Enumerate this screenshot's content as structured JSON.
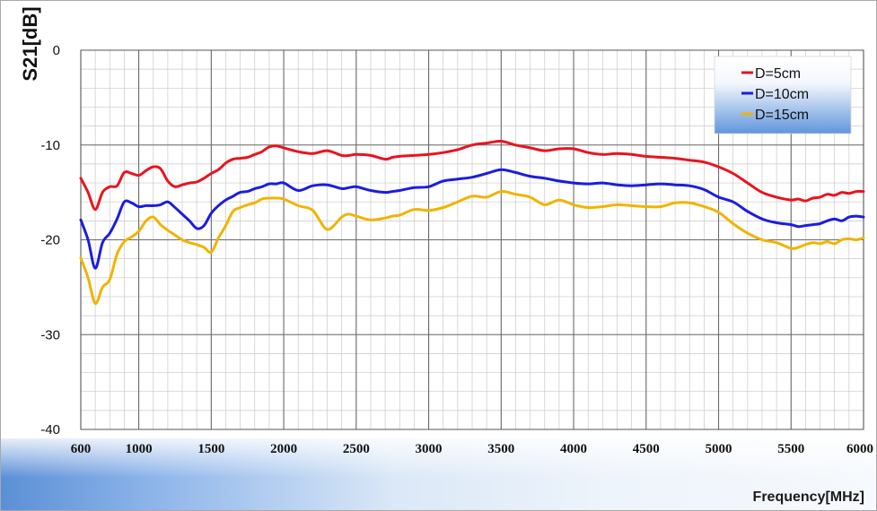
{
  "chart_data": {
    "type": "line",
    "title": "",
    "xlabel": "Frequency[MHz]",
    "ylabel": "S21[dB]",
    "xlim": [
      600,
      6000
    ],
    "ylim": [
      -40,
      0
    ],
    "xticks": [
      600,
      1000,
      1500,
      2000,
      2500,
      3000,
      3500,
      4000,
      4500,
      5000,
      5500,
      6000
    ],
    "yticks": [
      0,
      -10,
      -20,
      -30,
      -40
    ],
    "grid": true,
    "legend_position": "top-right",
    "series": [
      {
        "name": "D=5cm",
        "color": "#e8141e",
        "x": [
          600,
          650,
          700,
          750,
          800,
          850,
          900,
          950,
          1000,
          1050,
          1100,
          1150,
          1200,
          1250,
          1300,
          1350,
          1400,
          1450,
          1500,
          1550,
          1600,
          1650,
          1700,
          1750,
          1800,
          1850,
          1900,
          1950,
          2000,
          2100,
          2200,
          2300,
          2400,
          2450,
          2500,
          2600,
          2700,
          2750,
          2800,
          2900,
          3000,
          3100,
          3200,
          3300,
          3400,
          3500,
          3600,
          3700,
          3800,
          3900,
          4000,
          4100,
          4200,
          4300,
          4400,
          4500,
          4600,
          4700,
          4800,
          4900,
          5000,
          5100,
          5200,
          5300,
          5400,
          5500,
          5550,
          5600,
          5650,
          5700,
          5750,
          5800,
          5850,
          5900,
          5950,
          6000
        ],
        "y": [
          -13.5,
          -15.0,
          -16.8,
          -15.0,
          -14.4,
          -14.3,
          -12.9,
          -13.0,
          -13.2,
          -12.7,
          -12.3,
          -12.5,
          -13.8,
          -14.4,
          -14.2,
          -14.0,
          -13.9,
          -13.5,
          -13.0,
          -12.6,
          -11.9,
          -11.5,
          -11.4,
          -11.3,
          -11.0,
          -10.7,
          -10.2,
          -10.1,
          -10.3,
          -10.7,
          -10.9,
          -10.6,
          -11.1,
          -11.1,
          -11.0,
          -11.1,
          -11.5,
          -11.3,
          -11.2,
          -11.1,
          -11.0,
          -10.8,
          -10.5,
          -10.0,
          -9.8,
          -9.6,
          -10.0,
          -10.3,
          -10.6,
          -10.4,
          -10.4,
          -10.8,
          -11.0,
          -10.9,
          -11.0,
          -11.2,
          -11.3,
          -11.4,
          -11.6,
          -11.8,
          -12.3,
          -13.0,
          -14.0,
          -15.0,
          -15.5,
          -15.8,
          -15.7,
          -15.9,
          -15.6,
          -15.5,
          -15.2,
          -15.3,
          -15.0,
          -15.1,
          -14.9,
          -14.9
        ]
      },
      {
        "name": "D=10cm",
        "color": "#1c1ce0",
        "x": [
          600,
          650,
          700,
          750,
          800,
          850,
          900,
          950,
          1000,
          1050,
          1100,
          1150,
          1200,
          1250,
          1300,
          1350,
          1400,
          1450,
          1500,
          1550,
          1600,
          1650,
          1700,
          1750,
          1800,
          1850,
          1900,
          1950,
          2000,
          2100,
          2200,
          2300,
          2400,
          2450,
          2500,
          2600,
          2700,
          2750,
          2800,
          2900,
          3000,
          3100,
          3200,
          3300,
          3400,
          3500,
          3600,
          3700,
          3800,
          3900,
          4000,
          4100,
          4200,
          4300,
          4400,
          4500,
          4600,
          4700,
          4800,
          4900,
          5000,
          5100,
          5200,
          5300,
          5400,
          5500,
          5550,
          5600,
          5650,
          5700,
          5750,
          5800,
          5850,
          5900,
          5950,
          6000
        ],
        "y": [
          -17.9,
          -20.0,
          -23.0,
          -20.3,
          -19.3,
          -17.8,
          -16.0,
          -16.1,
          -16.5,
          -16.4,
          -16.4,
          -16.3,
          -16.0,
          -16.6,
          -17.3,
          -18.0,
          -18.8,
          -18.5,
          -17.2,
          -16.4,
          -15.8,
          -15.4,
          -15.0,
          -14.9,
          -14.6,
          -14.4,
          -14.1,
          -14.1,
          -14.0,
          -14.8,
          -14.3,
          -14.2,
          -14.6,
          -14.5,
          -14.4,
          -14.8,
          -15.0,
          -14.9,
          -14.8,
          -14.5,
          -14.4,
          -13.8,
          -13.6,
          -13.4,
          -13.0,
          -12.6,
          -12.9,
          -13.3,
          -13.5,
          -13.8,
          -14.0,
          -14.1,
          -14.0,
          -14.2,
          -14.3,
          -14.2,
          -14.1,
          -14.2,
          -14.3,
          -14.7,
          -15.5,
          -16.0,
          -17.0,
          -17.8,
          -18.2,
          -18.4,
          -18.6,
          -18.5,
          -18.4,
          -18.3,
          -18.0,
          -17.8,
          -18.0,
          -17.6,
          -17.5,
          -17.6
        ]
      },
      {
        "name": "D=15cm",
        "color": "#f0b400",
        "x": [
          600,
          650,
          700,
          750,
          800,
          850,
          900,
          950,
          1000,
          1050,
          1100,
          1150,
          1200,
          1250,
          1300,
          1350,
          1400,
          1450,
          1500,
          1550,
          1600,
          1650,
          1700,
          1750,
          1800,
          1850,
          1900,
          1950,
          2000,
          2100,
          2200,
          2300,
          2400,
          2450,
          2500,
          2600,
          2700,
          2750,
          2800,
          2900,
          3000,
          3100,
          3200,
          3300,
          3400,
          3500,
          3600,
          3700,
          3800,
          3900,
          4000,
          4100,
          4200,
          4300,
          4400,
          4500,
          4600,
          4700,
          4800,
          4900,
          5000,
          5100,
          5200,
          5300,
          5400,
          5500,
          5550,
          5600,
          5650,
          5700,
          5750,
          5800,
          5850,
          5900,
          5950,
          6000
        ],
        "y": [
          -21.9,
          -24.0,
          -26.7,
          -25.0,
          -24.2,
          -21.5,
          -20.2,
          -19.7,
          -19.1,
          -18.0,
          -17.6,
          -18.4,
          -19.0,
          -19.5,
          -20.0,
          -20.3,
          -20.5,
          -20.8,
          -21.3,
          -19.8,
          -18.5,
          -17.0,
          -16.6,
          -16.3,
          -16.1,
          -15.7,
          -15.6,
          -15.6,
          -15.7,
          -16.4,
          -16.9,
          -18.9,
          -17.6,
          -17.3,
          -17.5,
          -17.9,
          -17.7,
          -17.5,
          -17.4,
          -16.8,
          -16.9,
          -16.6,
          -16.0,
          -15.4,
          -15.5,
          -14.9,
          -15.2,
          -15.5,
          -16.3,
          -15.8,
          -16.3,
          -16.6,
          -16.5,
          -16.3,
          -16.4,
          -16.5,
          -16.5,
          -16.1,
          -16.1,
          -16.5,
          -17.1,
          -18.3,
          -19.3,
          -20.0,
          -20.3,
          -20.9,
          -20.8,
          -20.5,
          -20.3,
          -20.4,
          -20.2,
          -20.4,
          -20.0,
          -19.9,
          -20.0,
          -19.8
        ]
      }
    ]
  }
}
